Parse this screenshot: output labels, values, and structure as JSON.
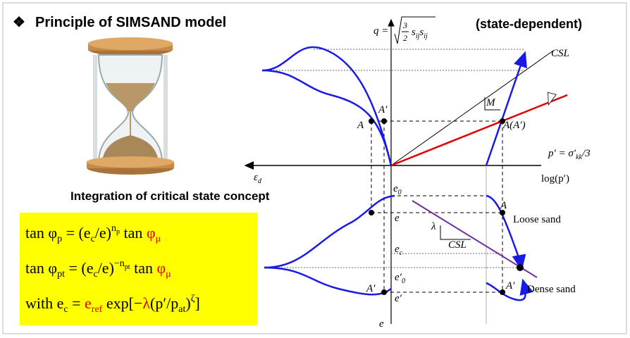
{
  "header": {
    "title": "Principle of SIMSAND model",
    "tag": "(state-dependent)"
  },
  "caption": "Integration of critical state concept",
  "equations": [
    [
      "tan φ",
      "p",
      " = (e",
      "c",
      "/e)",
      "n",
      "p",
      " tan ",
      "φ",
      "μ"
    ],
    [
      "tan φ",
      "pt",
      " = (e",
      "c",
      "/e)",
      "−n",
      "pt",
      " tan ",
      "φ",
      "μ"
    ],
    [
      "with e",
      "c",
      " = ",
      "e",
      "ref",
      " exp[−",
      "λ",
      "(p′/p",
      "at",
      ")",
      "ζ",
      "]"
    ]
  ],
  "labels": {
    "q_axis": [
      "q =",
      "3",
      "2",
      "s",
      "ij",
      "s",
      "ij"
    ],
    "csl_top": "CSL",
    "M": "M",
    "A": "A",
    "A_prime": "A′",
    "A_A_prime": "A(A′)",
    "p_axis": [
      "p′ = σ′",
      "kk",
      "/3"
    ],
    "eps_d": [
      "ε",
      "d"
    ],
    "log_p": "log(p′)",
    "e0": [
      "e",
      "0"
    ],
    "e": "e",
    "lambda": "λ",
    "csl_bottom": "CSL",
    "ec": [
      "e",
      "c"
    ],
    "e0_prime": [
      "e′",
      "0"
    ],
    "e_prime": "e′",
    "e_axis": "e",
    "A_loose": "A",
    "A_prime_dense": "A′",
    "A_prime_right": "A′",
    "loose": "Loose sand",
    "dense": "Dense sand"
  }
}
